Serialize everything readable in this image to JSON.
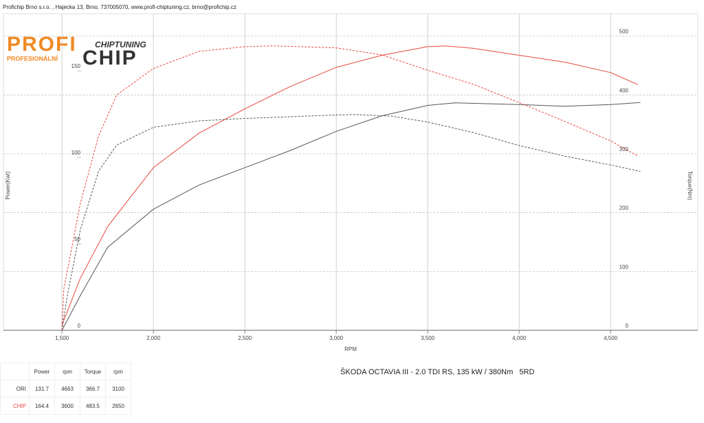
{
  "header": {
    "company": "Profichip Brno s.r.o. , Hajecka 13, Brno, 737005070, www.profi-chiptuning.cz, brno@profichip.cz"
  },
  "logo": {
    "profi": "PROFI",
    "profesional": "PROFESIONÁLNÍ",
    "chiptuning": "CHIPTUNING",
    "chip": "CHIP"
  },
  "chart_data": {
    "type": "line",
    "ylabel": "Power(Kwt)",
    "y2label": "Torque(Nm)",
    "xlabel": "RPM",
    "xlim": [
      1180,
      4977
    ],
    "ylim": [
      0,
      183
    ],
    "y2lim": [
      0,
      538
    ],
    "xticks": [
      {
        "value": 1500,
        "label": "1,500"
      },
      {
        "value": 2000,
        "label": "2,000"
      },
      {
        "value": 2500,
        "label": "2,500"
      },
      {
        "value": 3000,
        "label": "3,000"
      },
      {
        "value": 3500,
        "label": "3,500"
      },
      {
        "value": 4000,
        "label": "4,000"
      },
      {
        "value": 4500,
        "label": "4,500"
      }
    ],
    "yticks": [
      0,
      50,
      100,
      150
    ],
    "y2ticks": [
      0,
      100,
      200,
      300,
      400,
      500
    ],
    "grid": true,
    "series": [
      {
        "color": "#555555",
        "dash": false,
        "axis": "y",
        "x": [
          1500,
          1600,
          1750,
          2000,
          2250,
          2500,
          2750,
          3000,
          3250,
          3500,
          3650,
          4000,
          4250,
          4500,
          4663
        ],
        "values": [
          0,
          20,
          48,
          70,
          84,
          94,
          104,
          115,
          124,
          130,
          131.5,
          130.5,
          129.5,
          130.5,
          131.7
        ]
      },
      {
        "color": "#e8473e",
        "dash": false,
        "axis": "y",
        "x": [
          1500,
          1600,
          1750,
          2000,
          2250,
          2500,
          2750,
          3000,
          3250,
          3500,
          3600,
          3750,
          4000,
          4250,
          4500,
          4650
        ],
        "values": [
          3,
          30,
          60,
          94,
          114,
          128,
          141,
          152,
          159,
          164,
          164.4,
          163,
          159,
          155,
          149,
          142
        ]
      },
      {
        "color": "#555555",
        "dash": true,
        "axis": "y2",
        "x": [
          1500,
          1530,
          1600,
          1700,
          1800,
          2000,
          2250,
          2500,
          3000,
          3100,
          3300,
          3500,
          3750,
          4000,
          4250,
          4500,
          4663
        ],
        "values": [
          0,
          60,
          170,
          270,
          315,
          345,
          356,
          360,
          366,
          366.7,
          364,
          354,
          336,
          314,
          296,
          281,
          270
        ]
      },
      {
        "color": "#e8473e",
        "dash": true,
        "axis": "y2",
        "x": [
          1500,
          1510,
          1600,
          1700,
          1800,
          2000,
          2250,
          2500,
          2650,
          3000,
          3250,
          3500,
          3750,
          4000,
          4250,
          4500,
          4650
        ],
        "values": [
          0,
          70,
          215,
          330,
          400,
          445,
          474,
          482,
          483.5,
          480,
          468,
          442,
          418,
          387,
          355,
          322,
          296
        ]
      }
    ]
  },
  "table": {
    "header": [
      "Power",
      "rpm",
      "Torque",
      "rpm"
    ],
    "rows": [
      [
        "ORI",
        131.7,
        4663,
        366.7,
        3100
      ],
      [
        "CHIP",
        164.4,
        3600,
        483.5,
        2650
      ]
    ]
  },
  "title": "ŠKODA OCTAVIA III - 2.0 TDI RS, 135 kW / 380Nm   5RD"
}
